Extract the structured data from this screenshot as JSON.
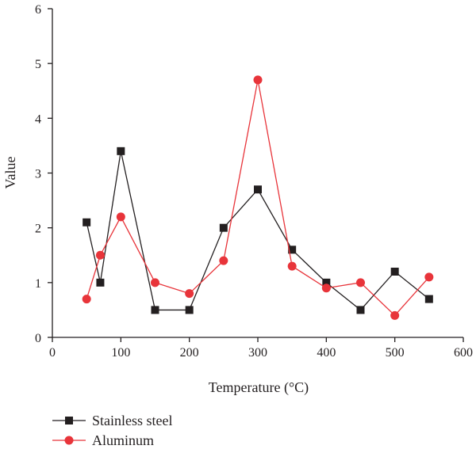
{
  "chart_data": {
    "type": "line",
    "title": "",
    "xlabel": "Temperature (°C)",
    "ylabel": "Value",
    "xlim": [
      0,
      600
    ],
    "ylim": [
      0,
      6
    ],
    "xticks": [
      0,
      100,
      200,
      300,
      400,
      500,
      600
    ],
    "yticks": [
      0,
      1,
      2,
      3,
      4,
      5,
      6
    ],
    "grid": false,
    "legend_position": "bottom-left",
    "series": [
      {
        "name": "Stainless steel",
        "marker": "square",
        "color": "#231f20",
        "x": [
          50,
          70,
          100,
          150,
          200,
          250,
          300,
          350,
          400,
          450,
          500,
          550
        ],
        "y": [
          2.1,
          1.0,
          3.4,
          0.5,
          0.5,
          2.0,
          2.7,
          1.6,
          1.0,
          0.5,
          1.2,
          0.7
        ]
      },
      {
        "name": "Aluminum",
        "marker": "circle",
        "color": "#e8343a",
        "x": [
          50,
          70,
          100,
          150,
          200,
          250,
          300,
          350,
          400,
          450,
          500,
          550
        ],
        "y": [
          0.7,
          1.5,
          2.2,
          1.0,
          0.8,
          1.4,
          4.7,
          1.3,
          0.9,
          1.0,
          0.4,
          1.1
        ]
      }
    ]
  }
}
